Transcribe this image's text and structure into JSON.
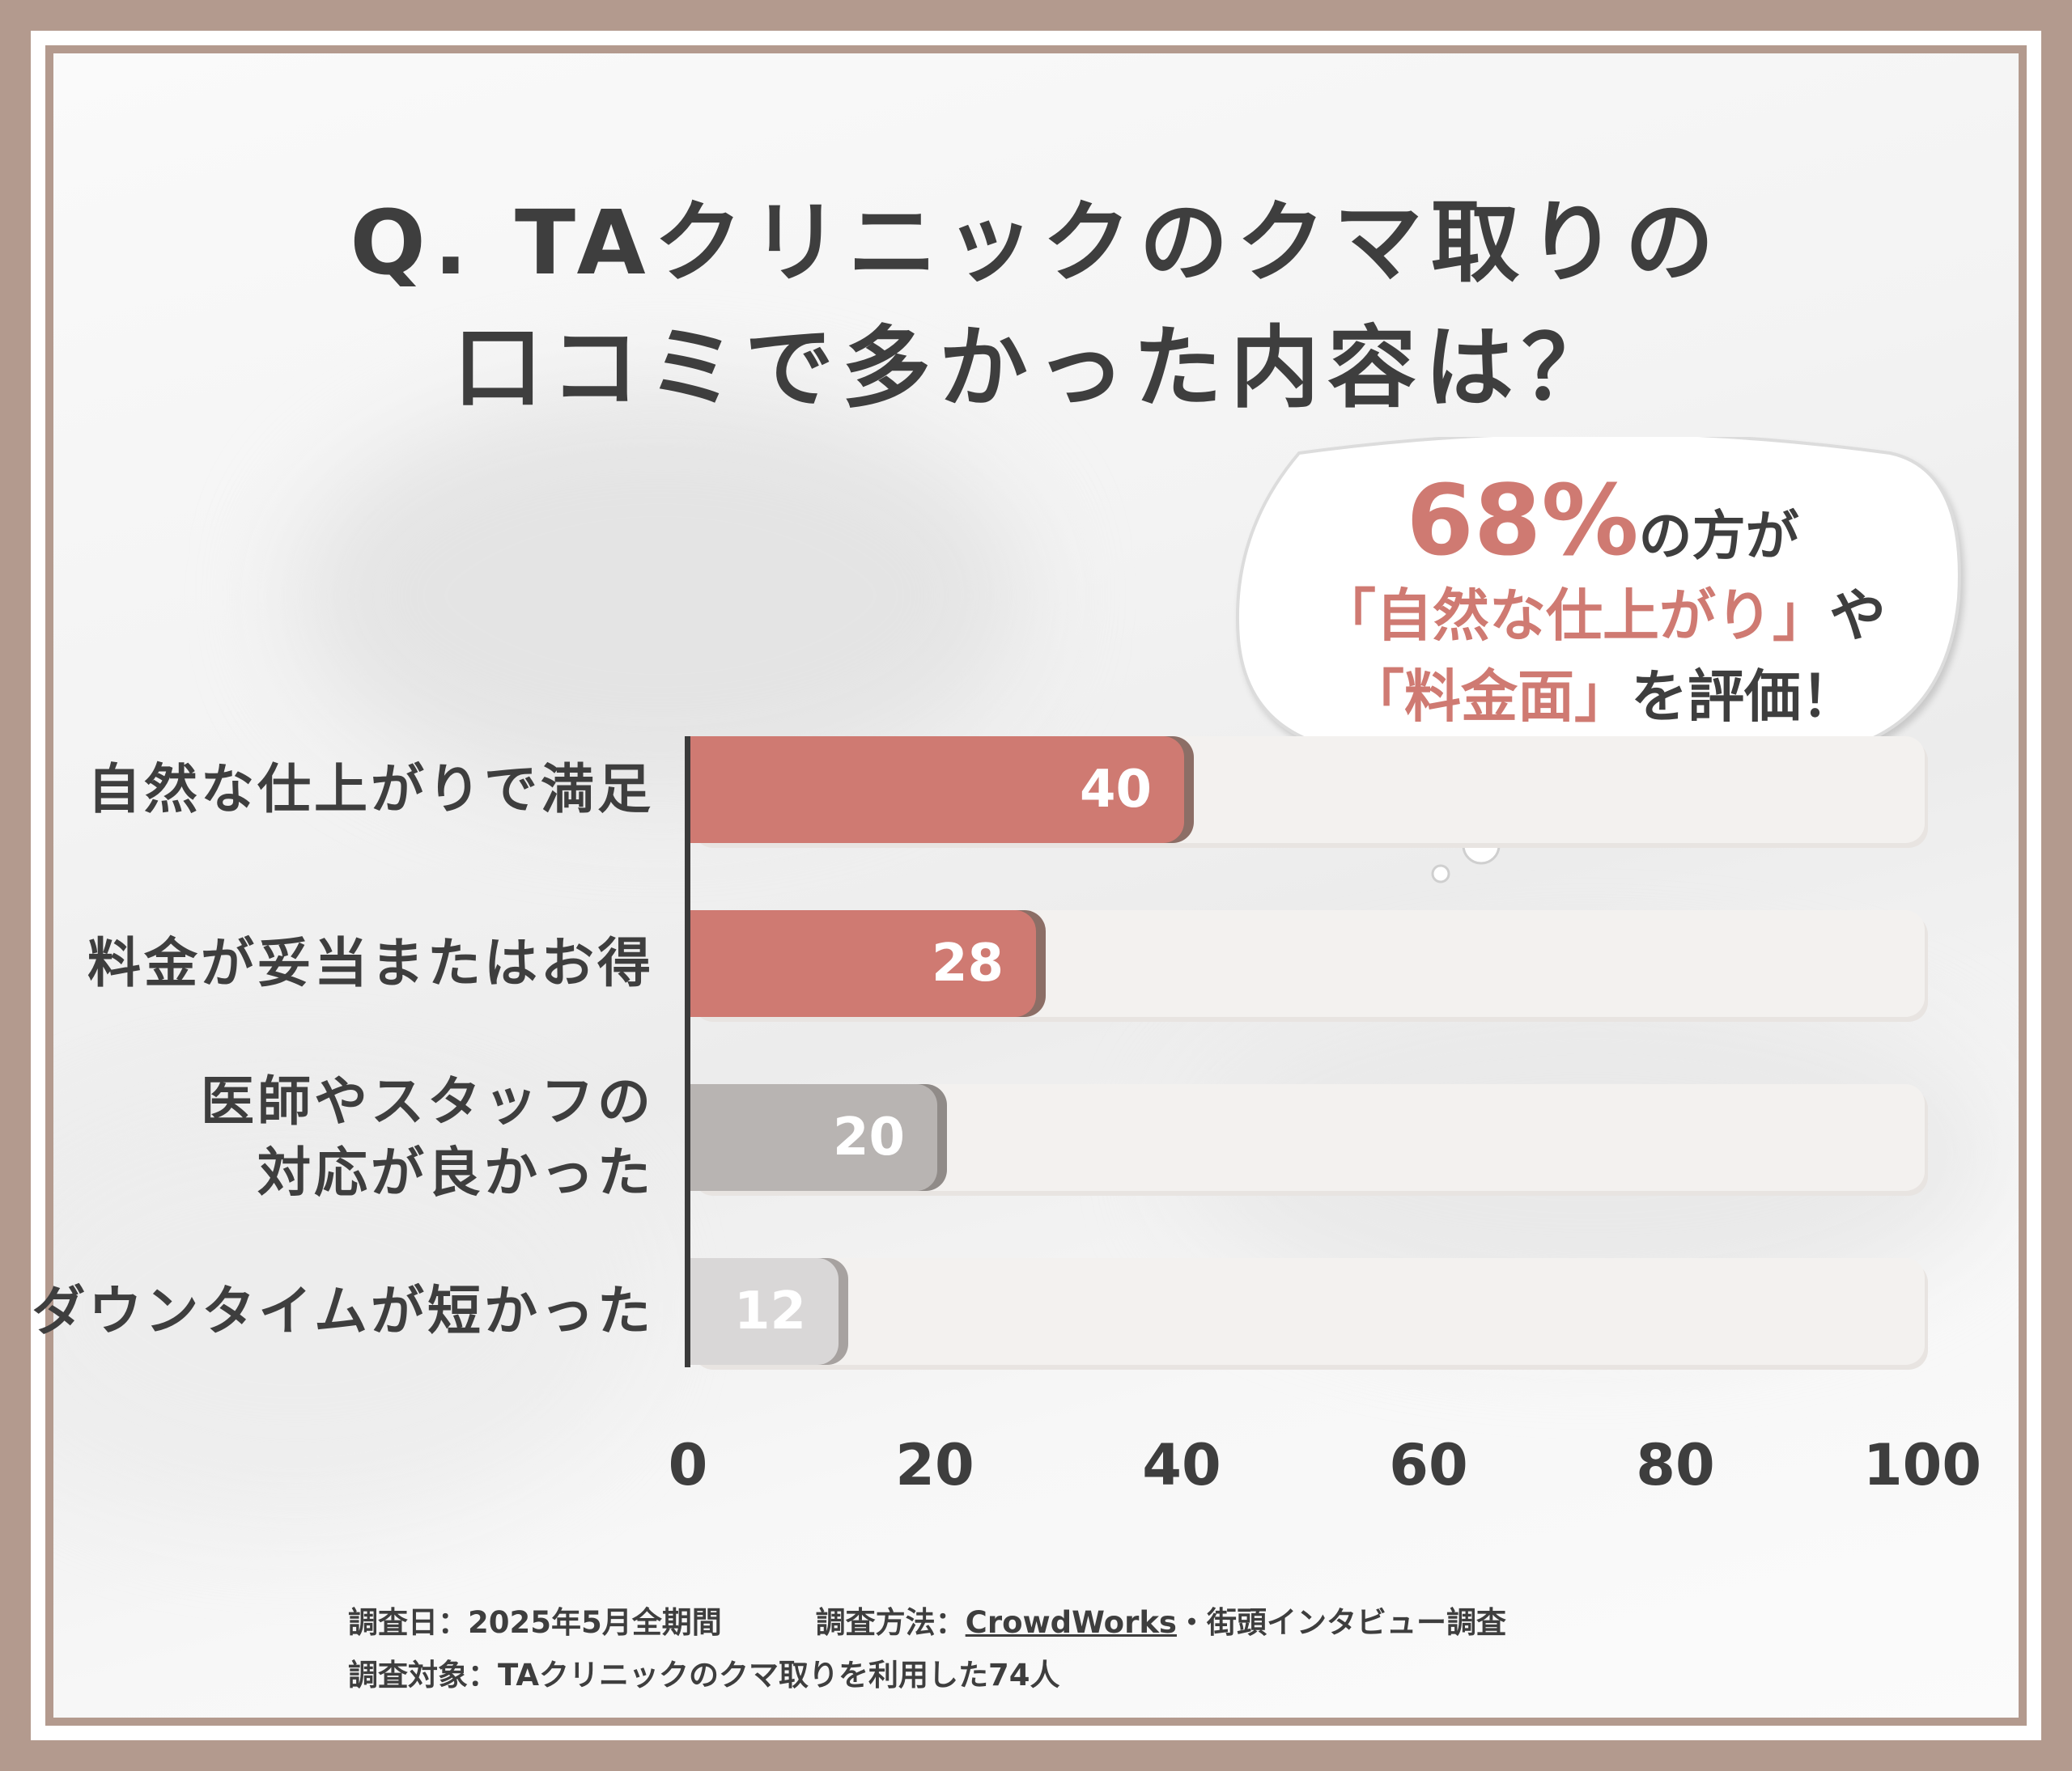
{
  "title_line1": "Q. TAクリニックのクマ取りの",
  "title_line2": "口コミで多かった内容は？",
  "callout": {
    "percent": "68%",
    "line1_rest": "の方が",
    "line2_highlight": "「自然な仕上がり」",
    "line2_rest": "や",
    "line3_highlight": "「料金面」",
    "line3_rest": "を評価！"
  },
  "colors": {
    "accent": "#cf7a72",
    "bar_red": "#cf7a72",
    "bar_red_shadow": "#8c6e66",
    "bar_gray": "#b8b4b2",
    "bar_gray_shadow": "#908b88",
    "bar_light": "#d9d7d7",
    "bar_light_shadow": "#a7a2a0",
    "track": "#f3f1ef",
    "text": "#3e3e3e",
    "frame": "#b39a8e"
  },
  "chart_data": {
    "type": "bar",
    "orientation": "horizontal",
    "categories": [
      "自然な仕上がりで満足",
      "料金が妥当またはお得",
      "医師やスタッフの\n対応が良かった",
      "ダウンタイムが短かった"
    ],
    "values": [
      40,
      28,
      20,
      12
    ],
    "value_labels": [
      "40",
      "28",
      "20",
      "12"
    ],
    "xlim": [
      0,
      100
    ],
    "xticks": [
      "0",
      "20",
      "40",
      "60",
      "80",
      "100"
    ],
    "grid": false,
    "legend": "none"
  },
  "footnote": {
    "date_label": "調査日：2025年5月全期間",
    "method_prefix": "調査方法：",
    "method_link": "CrowdWorks",
    "method_suffix": "・街頭インタビュー調査",
    "target": "調査対象：TAクリニックのクマ取りを利用した74人"
  }
}
